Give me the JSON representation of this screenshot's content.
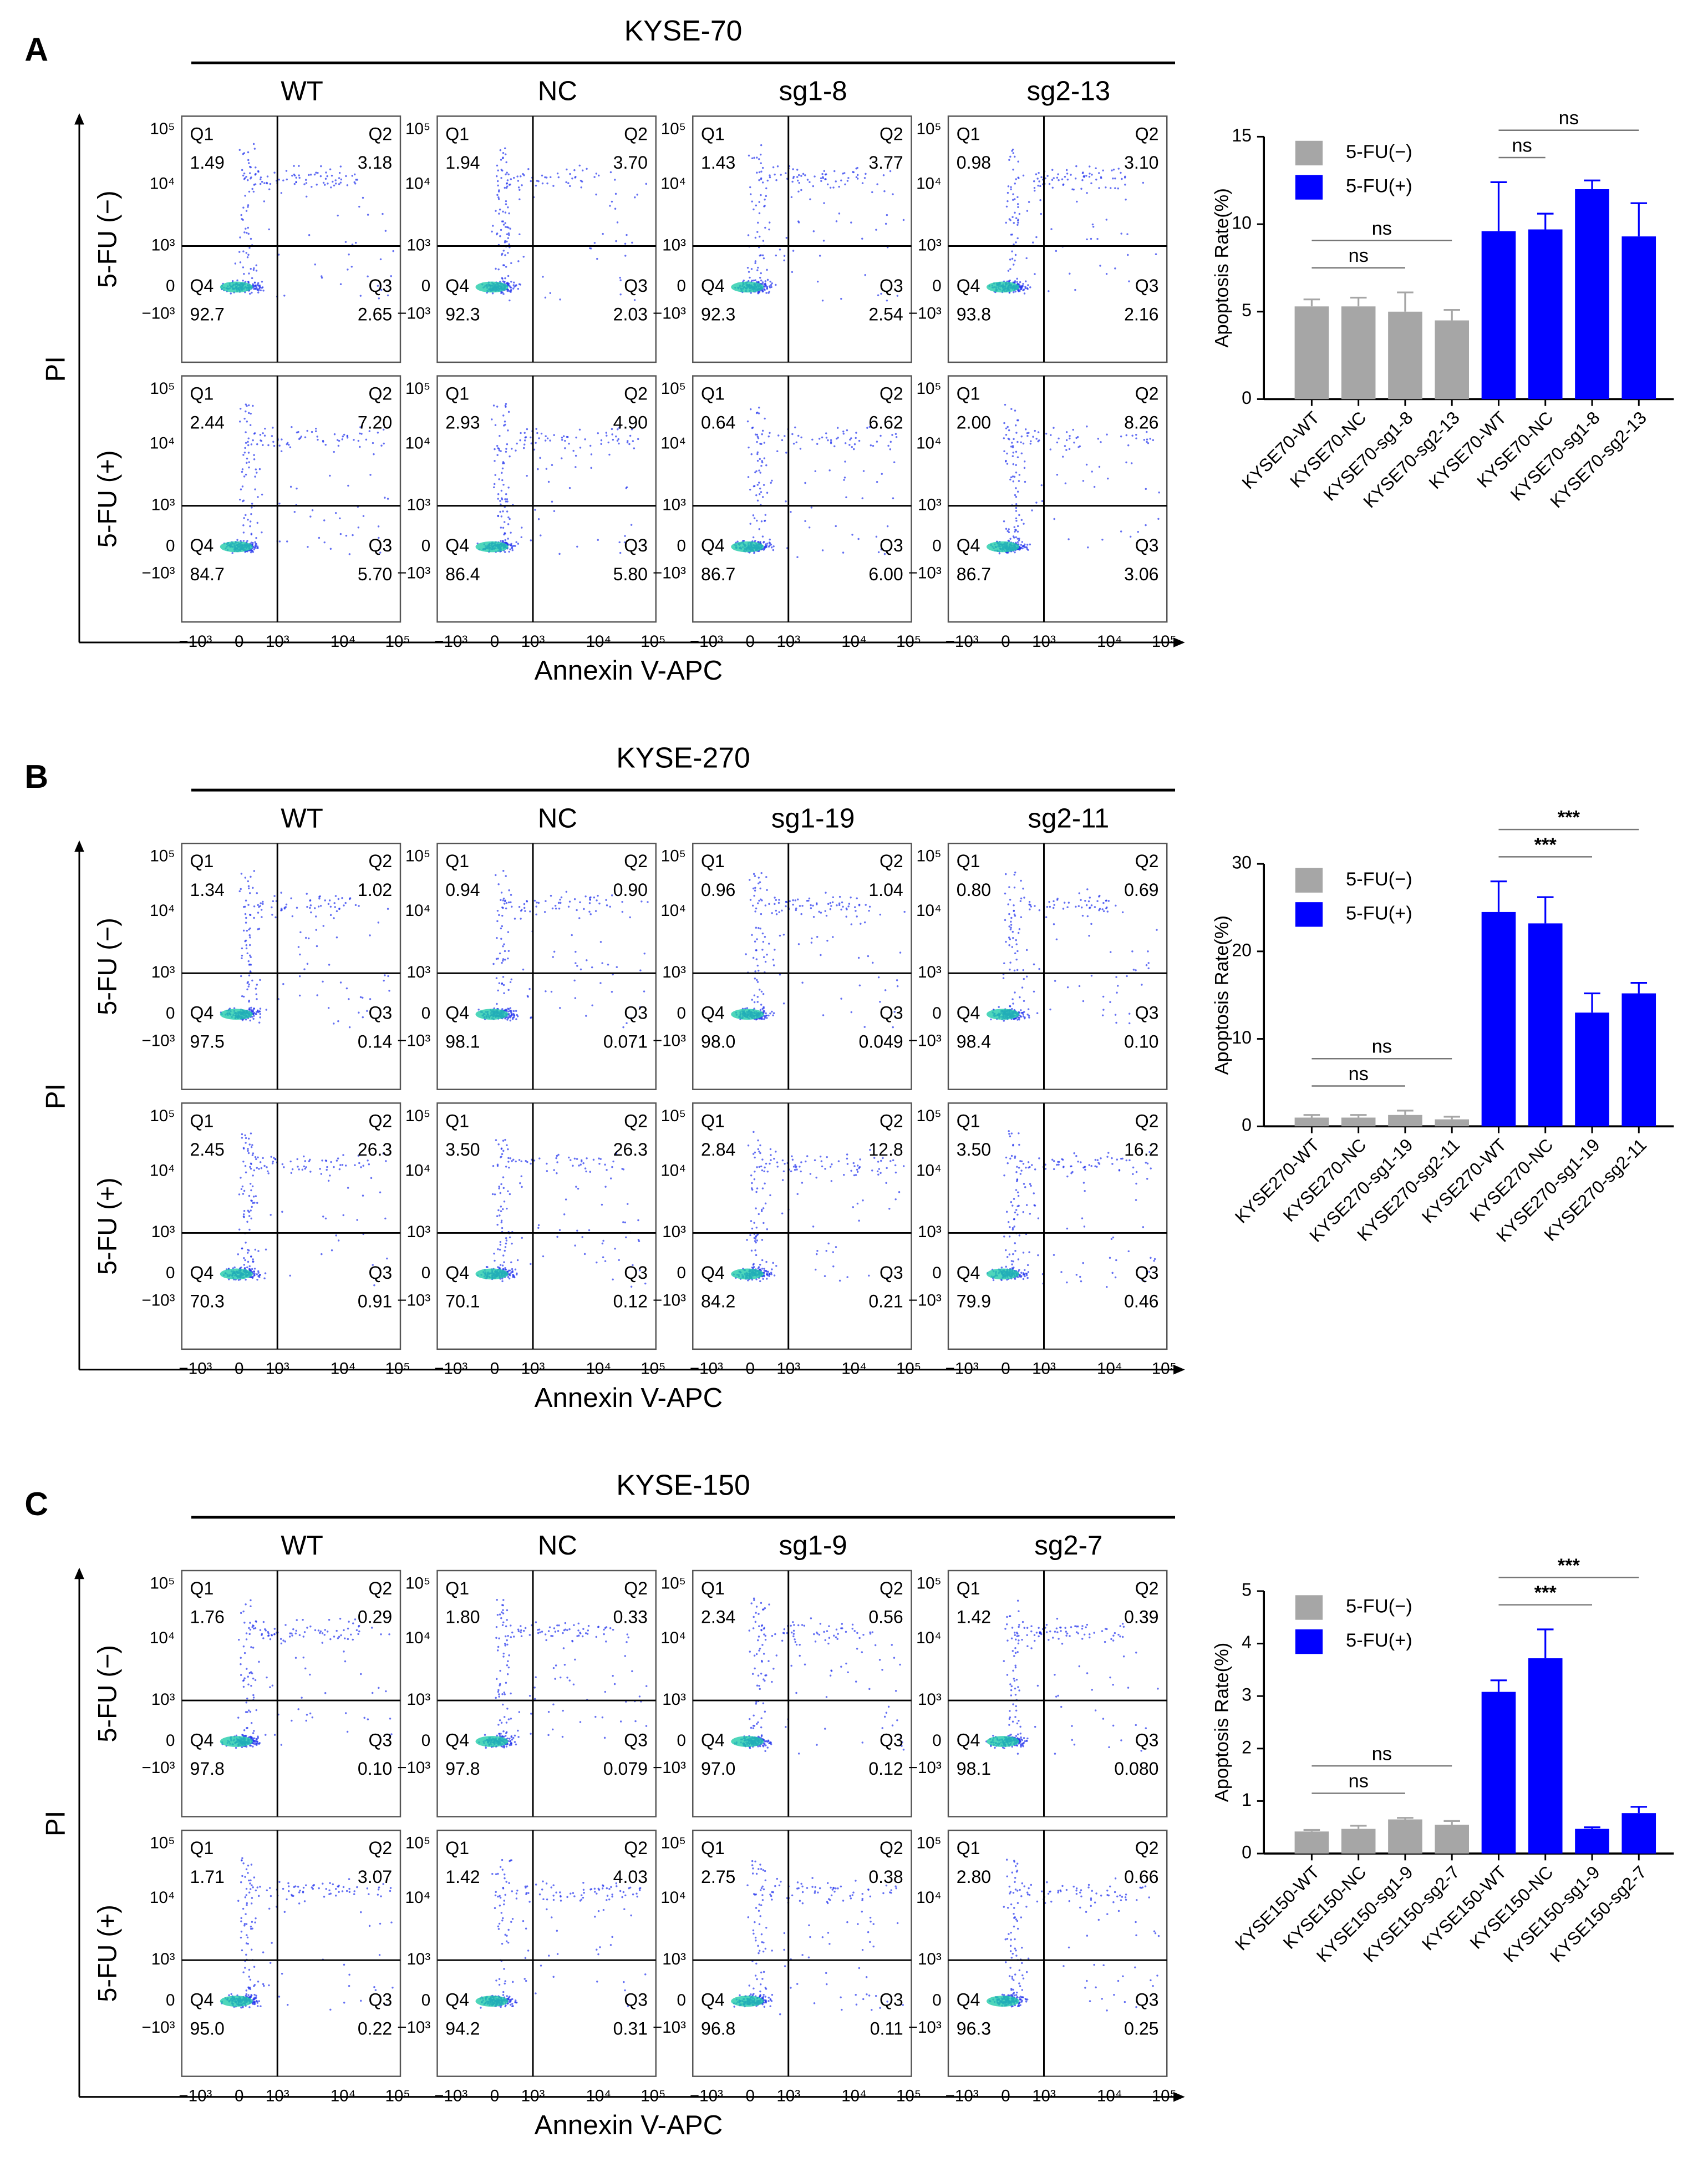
{
  "figure": {
    "quadrant_names": [
      "Q1",
      "Q2",
      "Q3",
      "Q4"
    ],
    "flow_xticks": [
      "−10³",
      "0",
      "10³",
      "10⁴",
      "10⁵"
    ],
    "flow_yticks": [
      "−10³",
      "0",
      "10³",
      "10⁴",
      "10⁵"
    ],
    "panels": [
      {
        "label": "A",
        "title": "KYSE-70",
        "columns": [
          "WT",
          "NC",
          "sg1-8",
          "sg2-13"
        ],
        "rows": [
          "5-FU (−)",
          "5-FU (+)"
        ],
        "y_axis": "PI",
        "x_axis": "Annexin V-APC",
        "quadrants": [
          [
            [
              "1.49",
              "3.18",
              "2.65",
              "92.7"
            ],
            [
              "1.94",
              "3.70",
              "2.03",
              "92.3"
            ],
            [
              "1.43",
              "3.77",
              "2.54",
              "92.3"
            ],
            [
              "0.98",
              "3.10",
              "2.16",
              "93.8"
            ]
          ],
          [
            [
              "2.44",
              "7.20",
              "5.70",
              "84.7"
            ],
            [
              "2.93",
              "4.90",
              "5.80",
              "86.4"
            ],
            [
              "0.64",
              "6.62",
              "6.00",
              "86.7"
            ],
            [
              "2.00",
              "8.26",
              "3.06",
              "86.7"
            ]
          ]
        ]
      },
      {
        "label": "B",
        "title": "KYSE-270",
        "columns": [
          "WT",
          "NC",
          "sg1-19",
          "sg2-11"
        ],
        "rows": [
          "5-FU (−)",
          "5-FU (+)"
        ],
        "y_axis": "PI",
        "x_axis": "Annexin V-APC",
        "quadrants": [
          [
            [
              "1.34",
              "1.02",
              "0.14",
              "97.5"
            ],
            [
              "0.94",
              "0.90",
              "0.071",
              "98.1"
            ],
            [
              "0.96",
              "1.04",
              "0.049",
              "98.0"
            ],
            [
              "0.80",
              "0.69",
              "0.10",
              "98.4"
            ]
          ],
          [
            [
              "2.45",
              "26.3",
              "0.91",
              "70.3"
            ],
            [
              "3.50",
              "26.3",
              "0.12",
              "70.1"
            ],
            [
              "2.84",
              "12.8",
              "0.21",
              "84.2"
            ],
            [
              "3.50",
              "16.2",
              "0.46",
              "79.9"
            ]
          ]
        ]
      },
      {
        "label": "C",
        "title": "KYSE-150",
        "columns": [
          "WT",
          "NC",
          "sg1-9",
          "sg2-7"
        ],
        "rows": [
          "5-FU (−)",
          "5-FU (+)"
        ],
        "y_axis": "PI",
        "x_axis": "Annexin V-APC",
        "quadrants": [
          [
            [
              "1.76",
              "0.29",
              "0.10",
              "97.8"
            ],
            [
              "1.80",
              "0.33",
              "0.079",
              "97.8"
            ],
            [
              "2.34",
              "0.56",
              "0.12",
              "97.0"
            ],
            [
              "1.42",
              "0.39",
              "0.080",
              "98.1"
            ]
          ],
          [
            [
              "1.71",
              "3.07",
              "0.22",
              "95.0"
            ],
            [
              "1.42",
              "4.03",
              "0.31",
              "94.2"
            ],
            [
              "2.75",
              "0.38",
              "0.11",
              "96.8"
            ],
            [
              "2.80",
              "0.66",
              "0.25",
              "96.3"
            ]
          ]
        ]
      }
    ]
  },
  "chart_data": [
    {
      "type": "bar",
      "y_label": "Apoptosis Rate(%)",
      "categories": [
        "KYSE70-WT",
        "KYSE70-NC",
        "KYSE70-sg1-8",
        "KYSE70-sg2-13",
        "KYSE70-WT",
        "KYSE70-NC",
        "KYSE70-sg1-8",
        "KYSE70-sg2-13"
      ],
      "series": [
        {
          "name": "5-FU(−)",
          "color": "#a6a6a6",
          "values": [
            5.3,
            5.3,
            5.0,
            4.5,
            null,
            null,
            null,
            null
          ],
          "errors": [
            0.4,
            0.5,
            1.1,
            0.6,
            null,
            null,
            null,
            null
          ]
        },
        {
          "name": "5-FU(+)",
          "color": "#0000ff",
          "values": [
            null,
            null,
            null,
            null,
            9.6,
            9.7,
            12.0,
            9.3
          ],
          "errors": [
            null,
            null,
            null,
            null,
            2.8,
            0.9,
            0.5,
            1.9
          ]
        }
      ],
      "ylim": [
        0,
        15
      ],
      "yticks": [
        0,
        5,
        10,
        15
      ],
      "legend": "upper left",
      "annotations": [
        {
          "text": "ns",
          "between": [
            0,
            2
          ]
        },
        {
          "text": "ns",
          "between": [
            0,
            3
          ]
        },
        {
          "text": "ns",
          "between": [
            4,
            5
          ]
        },
        {
          "text": "ns",
          "between": [
            4,
            7
          ]
        }
      ]
    },
    {
      "type": "bar",
      "y_label": "Apoptosis Rate(%)",
      "categories": [
        "KYSE270-WT",
        "KYSE270-NC",
        "KYSE270-sg1-19",
        "KYSE270-sg2-11",
        "KYSE270-WT",
        "KYSE270-NC",
        "KYSE270-sg1-19",
        "KYSE270-sg2-11"
      ],
      "series": [
        {
          "name": "5-FU(−)",
          "color": "#a6a6a6",
          "values": [
            1.0,
            1.0,
            1.3,
            0.8,
            null,
            null,
            null,
            null
          ],
          "errors": [
            0.3,
            0.3,
            0.5,
            0.3,
            null,
            null,
            null,
            null
          ]
        },
        {
          "name": "5-FU(+)",
          "color": "#0000ff",
          "values": [
            null,
            null,
            null,
            null,
            24.5,
            23.2,
            13.0,
            15.2
          ],
          "errors": [
            null,
            null,
            null,
            null,
            3.5,
            3.0,
            2.2,
            1.2
          ]
        }
      ],
      "ylim": [
        0,
        30
      ],
      "yticks": [
        0,
        10,
        20,
        30
      ],
      "legend": "upper left",
      "annotations": [
        {
          "text": "ns",
          "between": [
            0,
            2
          ]
        },
        {
          "text": "ns",
          "between": [
            0,
            3
          ]
        },
        {
          "text": "***",
          "between": [
            4,
            6
          ]
        },
        {
          "text": "***",
          "between": [
            4,
            7
          ]
        }
      ]
    },
    {
      "type": "bar",
      "y_label": "Apoptosis Rate(%)",
      "categories": [
        "KYSE150-WT",
        "KYSE150-NC",
        "KYSE150-sg1-9",
        "KYSE150-sg2-7",
        "KYSE150-WT",
        "KYSE150-NC",
        "KYSE150-sg1-9",
        "KYSE150-sg2-7"
      ],
      "series": [
        {
          "name": "5-FU(−)",
          "color": "#a6a6a6",
          "values": [
            0.42,
            0.47,
            0.65,
            0.55,
            null,
            null,
            null,
            null
          ],
          "errors": [
            0.03,
            0.06,
            0.03,
            0.07,
            null,
            null,
            null,
            null
          ]
        },
        {
          "name": "5-FU(+)",
          "color": "#0000ff",
          "values": [
            null,
            null,
            null,
            null,
            3.08,
            3.72,
            0.47,
            0.77
          ],
          "errors": [
            null,
            null,
            null,
            null,
            0.22,
            0.55,
            0.03,
            0.12
          ]
        }
      ],
      "ylim": [
        0,
        5
      ],
      "yticks": [
        0,
        1,
        2,
        3,
        4,
        5
      ],
      "legend": "upper left",
      "annotations": [
        {
          "text": "ns",
          "between": [
            0,
            2
          ]
        },
        {
          "text": "ns",
          "between": [
            0,
            3
          ]
        },
        {
          "text": "***",
          "between": [
            4,
            6
          ]
        },
        {
          "text": "***",
          "between": [
            4,
            7
          ]
        }
      ]
    }
  ]
}
